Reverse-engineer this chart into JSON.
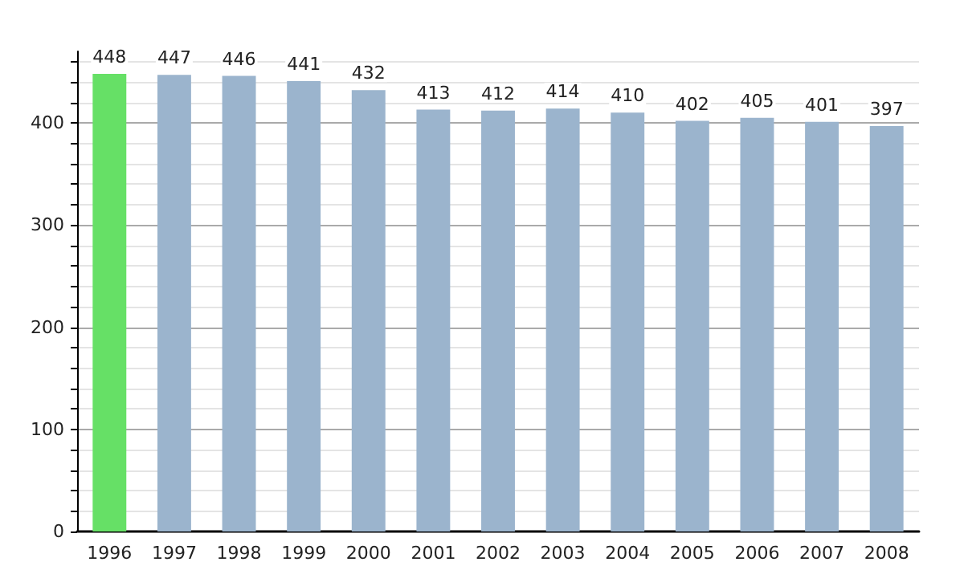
{
  "chart_data": {
    "type": "bar",
    "categories": [
      "1996",
      "1997",
      "1998",
      "1999",
      "2000",
      "2001",
      "2002",
      "2003",
      "2004",
      "2005",
      "2006",
      "2007",
      "2008"
    ],
    "values": [
      448,
      447,
      446,
      441,
      432,
      413,
      412,
      414,
      410,
      402,
      405,
      401,
      397
    ],
    "colors": [
      "#66e066",
      "#9bb4cd",
      "#9bb4cd",
      "#9bb4cd",
      "#9bb4cd",
      "#9bb4cd",
      "#9bb4cd",
      "#9bb4cd",
      "#9bb4cd",
      "#9bb4cd",
      "#9bb4cd",
      "#9bb4cd",
      "#9bb4cd"
    ],
    "ylim": [
      0,
      470
    ],
    "yticks": [
      0,
      {
        "value": 20,
        "label": null
      },
      {
        "value": 40,
        "label": null
      },
      {
        "value": 60,
        "label": null
      },
      {
        "value": 80,
        "label": null
      },
      100,
      {
        "value": 120,
        "label": null
      },
      {
        "value": 140,
        "label": null
      },
      {
        "value": 160,
        "label": null
      },
      {
        "value": 180,
        "label": null
      },
      200,
      {
        "value": 220,
        "label": null
      },
      {
        "value": 240,
        "label": null
      },
      {
        "value": 260,
        "label": null
      },
      {
        "value": 280,
        "label": null
      },
      300,
      {
        "value": 320,
        "label": null
      },
      {
        "value": 340,
        "label": null
      },
      {
        "value": 360,
        "label": null
      },
      {
        "value": 380,
        "label": null
      },
      400,
      {
        "value": 420,
        "label": null
      },
      {
        "value": 440,
        "label": null
      },
      {
        "value": 460,
        "label": null
      }
    ],
    "grid": "y",
    "data_labels": true
  }
}
